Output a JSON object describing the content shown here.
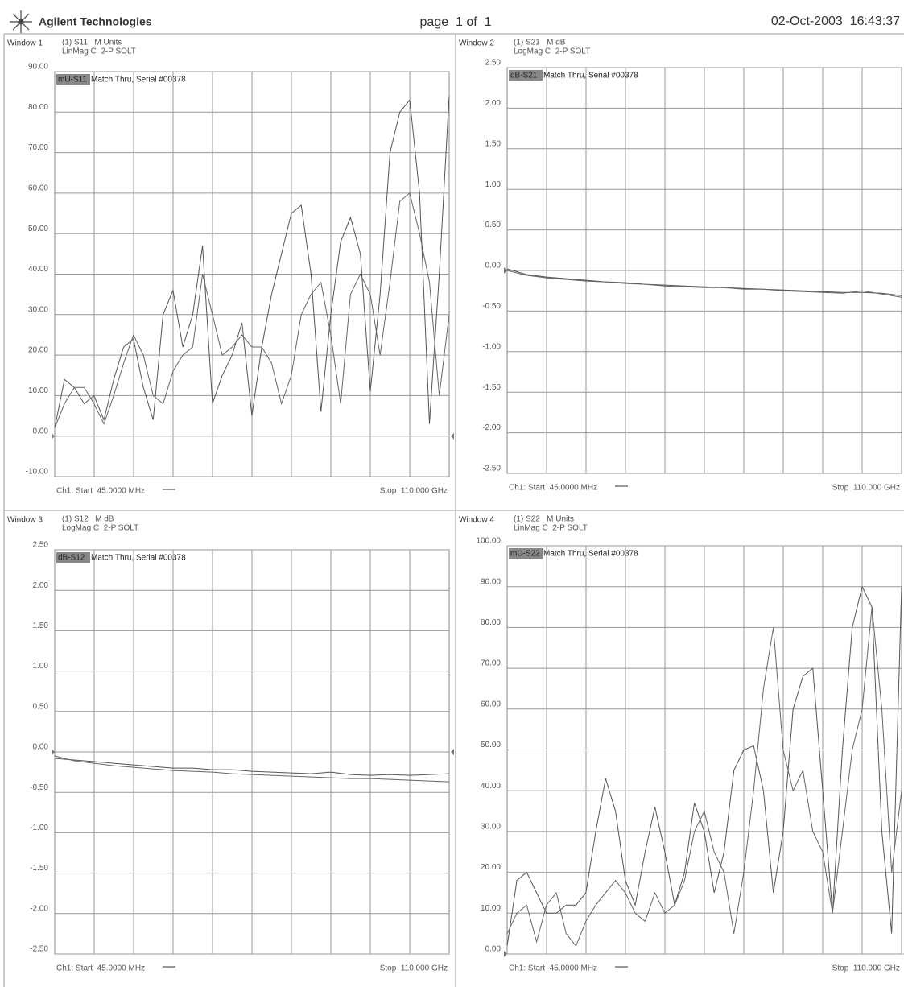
{
  "header": {
    "company": "Agilent Technologies",
    "page": "page  1 of  1",
    "timestamp": "02-Oct-2003  16:43:37"
  },
  "chart_data": [
    {
      "type": "line",
      "window": "Window 1",
      "trace_label": "(1) S11   M Units",
      "format": "LinMag C  2-P SOLT",
      "title_tag": "mU-S11",
      "title": "Match Thru, Serial #00378",
      "start_label": "Ch1: Start  45.0000 MHz",
      "stop_label": "Stop  110.000 GHz",
      "xlim": [
        0.045,
        110
      ],
      "ylim": [
        -10,
        90
      ],
      "grid": true,
      "yticks": [
        {
          "value": 90,
          "label": "90.00"
        },
        {
          "value": 80,
          "label": "80.00"
        },
        {
          "value": 70,
          "label": "70.00"
        },
        {
          "value": 60,
          "label": "60.00"
        },
        {
          "value": 50,
          "label": "50.00"
        },
        {
          "value": 40,
          "label": "40.00"
        },
        {
          "value": 30,
          "label": "30.00"
        },
        {
          "value": 20,
          "label": "20.00"
        },
        {
          "value": 10,
          "label": "10.00"
        },
        {
          "value": 0,
          "label": "0.00"
        },
        {
          "value": -10,
          "label": "-10.00"
        }
      ],
      "x": [
        0.045,
        2.75,
        5.5,
        8.25,
        11,
        13.75,
        16.5,
        19.25,
        22,
        24.75,
        27.5,
        30.25,
        33,
        35.75,
        38.5,
        41.25,
        44,
        46.75,
        49.5,
        52.25,
        55,
        57.75,
        60.5,
        63.25,
        66,
        68.75,
        71.5,
        74.25,
        77,
        79.75,
        82.5,
        85.25,
        88,
        90.75,
        93.5,
        96.25,
        99,
        101.75,
        104.5,
        107.25,
        110
      ],
      "series": [
        {
          "color": "#555555",
          "values": [
            2,
            14,
            12,
            8,
            10,
            4,
            14,
            22,
            24,
            12,
            4,
            30,
            36,
            22,
            30,
            47,
            8,
            15,
            20,
            28,
            5,
            22,
            35,
            45,
            55,
            57,
            40,
            6,
            30,
            48,
            54,
            45,
            11,
            35,
            70,
            80,
            83,
            60,
            3,
            40,
            84
          ]
        },
        {
          "color": "#666666",
          "values": [
            2,
            8,
            12,
            12,
            8,
            3,
            10,
            18,
            25,
            20,
            10,
            8,
            16,
            20,
            22,
            40,
            30,
            20,
            22,
            25,
            22,
            22,
            18,
            8,
            15,
            30,
            35,
            38,
            25,
            8,
            35,
            40,
            35,
            20,
            38,
            58,
            60,
            50,
            38,
            10,
            30
          ]
        }
      ]
    },
    {
      "type": "line",
      "window": "Window 2",
      "trace_label": "(1) S21   M dB",
      "format": "LogMag C  2-P SOLT",
      "title_tag": "dB-S21",
      "title": "Match Thru, Serial #00378",
      "start_label": "Ch1: Start  45.0000 MHz",
      "stop_label": "Stop  110.000 GHz",
      "xlim": [
        0.045,
        110
      ],
      "ylim": [
        -2.5,
        2.5
      ],
      "grid": true,
      "yticks": [
        {
          "value": 2.5,
          "label": "2.50"
        },
        {
          "value": 2,
          "label": "2.00"
        },
        {
          "value": 1.5,
          "label": "1.50"
        },
        {
          "value": 1,
          "label": "1.00"
        },
        {
          "value": 0.5,
          "label": "0.50"
        },
        {
          "value": 0,
          "label": "0.00"
        },
        {
          "value": -0.5,
          "label": "-0.50"
        },
        {
          "value": -1,
          "label": "-1.00"
        },
        {
          "value": -1.5,
          "label": "-1.50"
        },
        {
          "value": -2,
          "label": "-2.00"
        },
        {
          "value": -2.5,
          "label": "-2.50"
        }
      ],
      "x": [
        0.045,
        5.5,
        11,
        16.5,
        22,
        27.5,
        33,
        38.5,
        44,
        49.5,
        55,
        60.5,
        66,
        71.5,
        77,
        82.5,
        88,
        93.5,
        99,
        104.5,
        110
      ],
      "series": [
        {
          "color": "#555555",
          "values": [
            0.02,
            -0.05,
            -0.08,
            -0.1,
            -0.12,
            -0.14,
            -0.15,
            -0.17,
            -0.18,
            -0.19,
            -0.2,
            -0.21,
            -0.22,
            -0.23,
            -0.24,
            -0.25,
            -0.26,
            -0.27,
            -0.27,
            -0.28,
            -0.31
          ]
        },
        {
          "color": "#666666",
          "values": [
            0,
            -0.06,
            -0.09,
            -0.11,
            -0.13,
            -0.14,
            -0.16,
            -0.17,
            -0.19,
            -0.2,
            -0.21,
            -0.21,
            -0.23,
            -0.23,
            -0.25,
            -0.26,
            -0.27,
            -0.28,
            -0.25,
            -0.29,
            -0.33
          ]
        }
      ]
    },
    {
      "type": "line",
      "window": "Window 3",
      "trace_label": "(1) S12   M dB",
      "format": "LogMag C  2-P SOLT",
      "title_tag": "dB-S12",
      "title": "Match Thru, Serial #00378",
      "start_label": "Ch1: Start  45.0000 MHz",
      "stop_label": "Stop  110.000 GHz",
      "xlim": [
        0.045,
        110
      ],
      "ylim": [
        -2.5,
        2.5
      ],
      "grid": true,
      "yticks": [
        {
          "value": 2.5,
          "label": "2.50"
        },
        {
          "value": 2,
          "label": "2.00"
        },
        {
          "value": 1.5,
          "label": "1.50"
        },
        {
          "value": 1,
          "label": "1.00"
        },
        {
          "value": 0.5,
          "label": "0.50"
        },
        {
          "value": 0,
          "label": "0.00"
        },
        {
          "value": -0.5,
          "label": "-0.50"
        },
        {
          "value": -1,
          "label": "-1.00"
        },
        {
          "value": -1.5,
          "label": "-1.50"
        },
        {
          "value": -2,
          "label": "-2.00"
        },
        {
          "value": -2.5,
          "label": "-2.50"
        }
      ],
      "x": [
        0.045,
        5.5,
        11,
        16.5,
        22,
        27.5,
        33,
        38.5,
        44,
        49.5,
        55,
        60.5,
        66,
        71.5,
        77,
        82.5,
        88,
        93.5,
        99,
        104.5,
        110
      ],
      "series": [
        {
          "color": "#555555",
          "values": [
            -0.08,
            -0.1,
            -0.12,
            -0.14,
            -0.16,
            -0.18,
            -0.2,
            -0.2,
            -0.22,
            -0.22,
            -0.24,
            -0.25,
            -0.26,
            -0.27,
            -0.25,
            -0.28,
            -0.29,
            -0.28,
            -0.29,
            -0.28,
            -0.27
          ]
        },
        {
          "color": "#666666",
          "values": [
            -0.05,
            -0.11,
            -0.14,
            -0.17,
            -0.19,
            -0.21,
            -0.23,
            -0.24,
            -0.25,
            -0.27,
            -0.28,
            -0.29,
            -0.3,
            -0.31,
            -0.32,
            -0.33,
            -0.33,
            -0.34,
            -0.35,
            -0.36,
            -0.37
          ]
        }
      ]
    },
    {
      "type": "line",
      "window": "Window 4",
      "trace_label": "(1) S22   M Units",
      "format": "LinMag C  2-P SOLT",
      "title_tag": "mU-S22",
      "title": "Match Thru, Serial #00378",
      "start_label": "Ch1: Start  45.0000 MHz",
      "stop_label": "Stop  110.000 GHz",
      "xlim": [
        0.045,
        110
      ],
      "ylim": [
        0,
        100
      ],
      "grid": true,
      "yticks": [
        {
          "value": 100,
          "label": "100.00"
        },
        {
          "value": 90,
          "label": "90.00"
        },
        {
          "value": 80,
          "label": "80.00"
        },
        {
          "value": 70,
          "label": "70.00"
        },
        {
          "value": 60,
          "label": "60.00"
        },
        {
          "value": 50,
          "label": "50.00"
        },
        {
          "value": 40,
          "label": "40.00"
        },
        {
          "value": 30,
          "label": "30.00"
        },
        {
          "value": 20,
          "label": "20.00"
        },
        {
          "value": 10,
          "label": "10.00"
        },
        {
          "value": 0,
          "label": "0.00"
        }
      ],
      "x": [
        0.045,
        2.75,
        5.5,
        8.25,
        11,
        13.75,
        16.5,
        19.25,
        22,
        24.75,
        27.5,
        30.25,
        33,
        35.75,
        38.5,
        41.25,
        44,
        46.75,
        49.5,
        52.25,
        55,
        57.75,
        60.5,
        63.25,
        66,
        68.75,
        71.5,
        74.25,
        77,
        79.75,
        82.5,
        85.25,
        88,
        90.75,
        93.5,
        96.25,
        99,
        101.75,
        104.5,
        107.25,
        110
      ],
      "series": [
        {
          "color": "#555555",
          "values": [
            2,
            18,
            20,
            15,
            10,
            10,
            12,
            12,
            15,
            30,
            43,
            35,
            18,
            12,
            25,
            36,
            25,
            12,
            20,
            37,
            30,
            15,
            25,
            45,
            50,
            51,
            40,
            15,
            30,
            60,
            68,
            70,
            40,
            10,
            50,
            80,
            90,
            85,
            30,
            5,
            90
          ]
        },
        {
          "color": "#666666",
          "values": [
            5,
            10,
            12,
            3,
            12,
            15,
            5,
            2,
            8,
            12,
            15,
            18,
            15,
            10,
            8,
            15,
            10,
            12,
            18,
            30,
            35,
            25,
            20,
            5,
            20,
            40,
            65,
            80,
            50,
            40,
            45,
            30,
            25,
            10,
            30,
            50,
            60,
            85,
            60,
            20,
            40
          ]
        }
      ]
    }
  ]
}
